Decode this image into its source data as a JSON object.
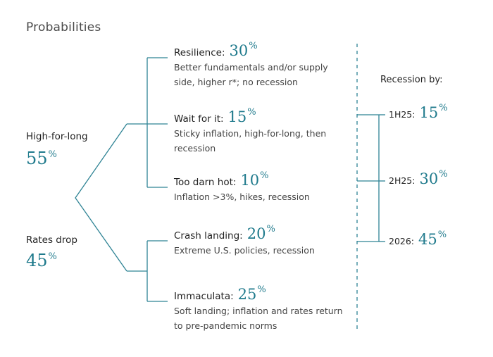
{
  "title": "Probabilities",
  "colors": {
    "accent": "#1f7a8c",
    "line": "#2e8394"
  },
  "branches": [
    {
      "label": "High-for-long",
      "value": "55",
      "unit": "%"
    },
    {
      "label": "Rates drop",
      "value": "45",
      "unit": "%"
    }
  ],
  "scenarios": [
    {
      "name": "Resilience:",
      "value": "30",
      "unit": "%",
      "desc": "Better fundamentals and/or supply side, higher r*; no recession"
    },
    {
      "name": "Wait for it:",
      "value": "15",
      "unit": "%",
      "desc": "Sticky inflation, high-for-long, then recession"
    },
    {
      "name": "Too darn hot:",
      "value": "10",
      "unit": "%",
      "desc": "Inflation >3%, hikes, recession"
    },
    {
      "name": "Crash landing:",
      "value": "20",
      "unit": "%",
      "desc": "Extreme U.S. policies, recession"
    },
    {
      "name": "Immaculata:",
      "value": "25",
      "unit": "%",
      "desc": "Soft landing; inflation and rates return to pre-pandemic norms"
    }
  ],
  "recession": {
    "title": "Recession by:",
    "items": [
      {
        "label": "1H25:",
        "value": "15",
        "unit": "%"
      },
      {
        "label": "2H25:",
        "value": "30",
        "unit": "%"
      },
      {
        "label": "2026:",
        "value": "45",
        "unit": "%"
      }
    ]
  }
}
